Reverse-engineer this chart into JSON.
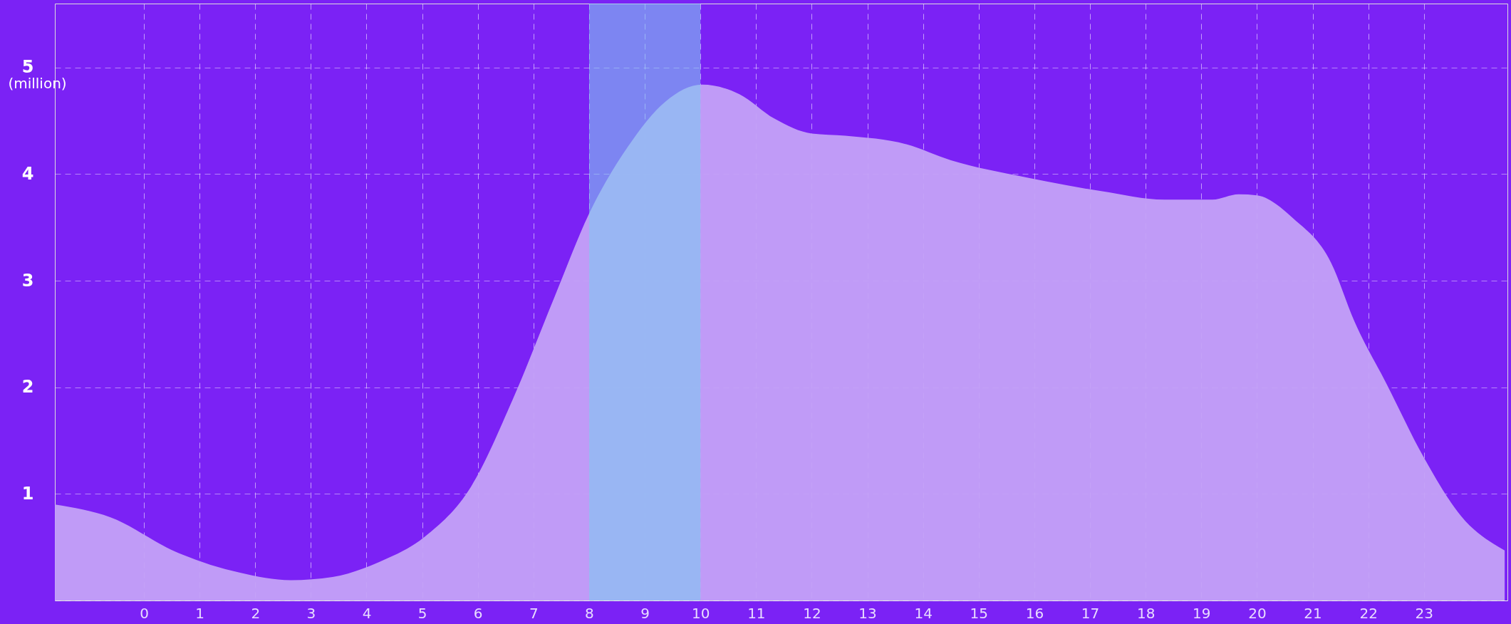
{
  "chart_data": {
    "type": "area",
    "ylabel": "(million)",
    "series": [
      {
        "color": "#c4a2f7",
        "x": [
          -1.6,
          -0.6,
          0.56,
          1.73,
          2.64,
          3.39,
          4.22,
          5.05,
          5.88,
          6.63,
          7.38,
          8.0,
          8.7,
          9.37,
          10.03,
          10.7,
          11.33,
          12.0,
          12.6,
          13.7,
          14.5,
          15.85,
          17.2,
          18.34,
          19.2,
          19.67,
          20.0,
          20.66,
          21.33,
          21.75,
          22.33,
          23.0,
          23.67,
          24.45
        ],
        "values": [
          0.9,
          0.78,
          0.46,
          0.26,
          0.19,
          0.22,
          0.36,
          0.6,
          1.07,
          1.89,
          2.85,
          3.63,
          4.26,
          4.68,
          4.84,
          4.75,
          4.52,
          4.38,
          4.36,
          4.28,
          4.13,
          3.97,
          3.84,
          3.76,
          3.76,
          3.81,
          3.8,
          3.58,
          3.17,
          2.62,
          2.03,
          1.34,
          0.79,
          0.47
        ]
      }
    ],
    "bands": [
      {
        "axis": "x",
        "from": 8,
        "to": 10,
        "color": "#7fc8f0"
      }
    ],
    "xlim": [
      -1.6,
      24.5
    ],
    "xticks": [
      0,
      1,
      2,
      3,
      4,
      5,
      6,
      7,
      8,
      9,
      10,
      11,
      12,
      13,
      14,
      15,
      16,
      17,
      18,
      19,
      20,
      21,
      22,
      23
    ],
    "ylim": [
      0,
      5.6
    ],
    "yticks": [
      {
        "value": 0,
        "label": null
      },
      1,
      2,
      3,
      4,
      5
    ],
    "grid": true,
    "line_style": "dashed"
  }
}
